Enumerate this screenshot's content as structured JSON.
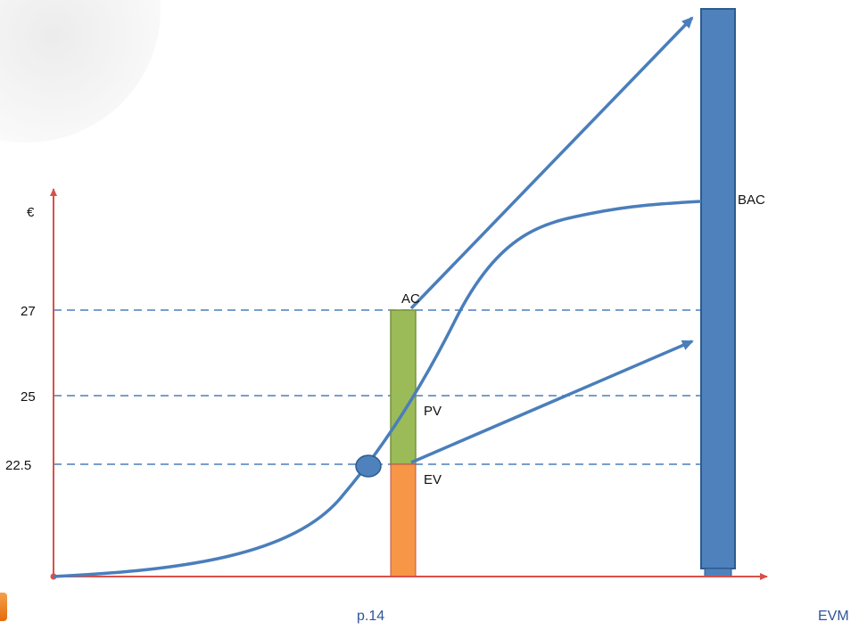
{
  "axis": {
    "y_unit": "€",
    "ticks": [
      "27",
      "25",
      "22.5"
    ]
  },
  "labels": {
    "ac": "AC",
    "pv": "PV",
    "ev": "EV",
    "bac": "BAC"
  },
  "footer": {
    "page": "p.14",
    "title": "EVM"
  },
  "colors": {
    "axis": "#d9504a",
    "curve": "#4a7ebb",
    "ac_bar": "#9bbb59",
    "ev_bar": "#f79646",
    "bac_bar": "#4f81bd"
  }
}
